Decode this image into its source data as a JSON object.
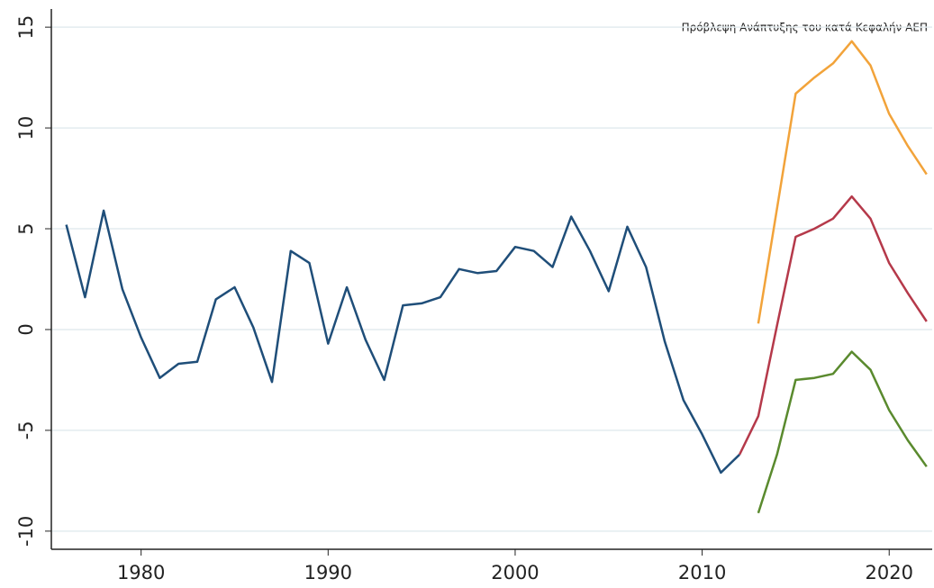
{
  "chart_data": {
    "type": "line",
    "annotation": "Πρόβλεψη Ανάπτυξης του κατά Κεφαλήν ΑΕΠ",
    "x": [
      1976,
      1977,
      1978,
      1979,
      1980,
      1981,
      1982,
      1983,
      1984,
      1985,
      1986,
      1987,
      1988,
      1989,
      1990,
      1991,
      1992,
      1993,
      1994,
      1995,
      1996,
      1997,
      1998,
      1999,
      2000,
      2001,
      2002,
      2003,
      2004,
      2005,
      2006,
      2007,
      2008,
      2009,
      2010,
      2011,
      2012,
      2013,
      2014,
      2015,
      2016,
      2017,
      2018,
      2019,
      2020,
      2021,
      2022
    ],
    "series": [
      {
        "color": "#1f4e79",
        "values": [
          5.2,
          1.6,
          5.9,
          2.0,
          -0.4,
          -2.4,
          -1.7,
          -1.6,
          1.5,
          2.1,
          0.1,
          -2.6,
          3.9,
          3.3,
          -0.7,
          2.1,
          -0.5,
          -2.5,
          1.2,
          1.3,
          1.6,
          3.0,
          2.8,
          2.9,
          4.1,
          3.9,
          3.1,
          5.6,
          3.9,
          1.9,
          5.1,
          3.1,
          -0.6,
          -3.5,
          -5.2,
          -7.1,
          -6.2,
          null,
          null,
          null,
          null,
          null,
          null,
          null,
          null,
          null,
          null
        ]
      },
      {
        "color": "#f2a33a",
        "values": [
          null,
          null,
          null,
          null,
          null,
          null,
          null,
          null,
          null,
          null,
          null,
          null,
          null,
          null,
          null,
          null,
          null,
          null,
          null,
          null,
          null,
          null,
          null,
          null,
          null,
          null,
          null,
          null,
          null,
          null,
          null,
          null,
          null,
          null,
          null,
          null,
          null,
          0.3,
          6.0,
          11.7,
          12.5,
          13.2,
          14.3,
          13.1,
          10.7,
          9.1,
          7.7
        ]
      },
      {
        "color": "#b5394a",
        "values": [
          null,
          null,
          null,
          null,
          null,
          null,
          null,
          null,
          null,
          null,
          null,
          null,
          null,
          null,
          null,
          null,
          null,
          null,
          null,
          null,
          null,
          null,
          null,
          null,
          null,
          null,
          null,
          null,
          null,
          null,
          null,
          null,
          null,
          null,
          null,
          null,
          -6.2,
          -4.3,
          0.2,
          4.6,
          5.0,
          5.5,
          6.6,
          5.5,
          3.3,
          1.8,
          0.4
        ]
      },
      {
        "color": "#5a8a2e",
        "values": [
          null,
          null,
          null,
          null,
          null,
          null,
          null,
          null,
          null,
          null,
          null,
          null,
          null,
          null,
          null,
          null,
          null,
          null,
          null,
          null,
          null,
          null,
          null,
          null,
          null,
          null,
          null,
          null,
          null,
          null,
          null,
          null,
          null,
          null,
          null,
          null,
          null,
          -9.1,
          -6.2,
          -2.5,
          -2.4,
          -2.2,
          -1.1,
          -2.0,
          -4.0,
          -5.5,
          -6.8
        ]
      }
    ],
    "xlim": [
      1975.2,
      2022.3
    ],
    "xticks": [
      1980,
      1990,
      2000,
      2010,
      2020
    ],
    "ylim": [
      -10.9,
      15.9
    ],
    "yticks": [
      -10,
      -5,
      0,
      5,
      10,
      15
    ],
    "grid": true
  }
}
